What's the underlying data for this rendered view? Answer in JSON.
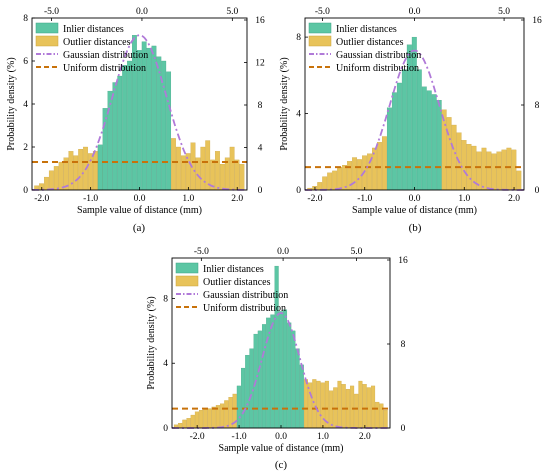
{
  "figure": {
    "ylabel": "Probability density (%)",
    "xlabel": "Sample value of distance (mm)",
    "legend": {
      "inlier": "Inlier distances",
      "outlier": "Outlier distances",
      "gaussian": "Gaussian distribution",
      "uniform": "Uniform distribution"
    },
    "colors": {
      "inlier": "#5cc6a4",
      "outlier": "#e8c35a",
      "gaussian": "#b07ad8",
      "uniform": "#c8720a"
    }
  },
  "chart_data": [
    {
      "type": "bar",
      "panel_label": "(a)",
      "title": "",
      "xlabel": "Sample value of distance (mm)",
      "ylabel": "Probability density (%)",
      "xlim": [
        -2.2,
        2.2
      ],
      "ylim": [
        0,
        8
      ],
      "xticks": [
        "-2.0",
        "-1.0",
        "0.0",
        "1.0",
        "2.0"
      ],
      "xtick_values": [
        -2,
        -1,
        0,
        1,
        2
      ],
      "yticks": [
        "0",
        "2",
        "4",
        "6",
        "8"
      ],
      "top_ticks": [
        "-5.0",
        "0.0",
        "5.0"
      ],
      "top_tick_values": [
        -1.8,
        0.05,
        1.9
      ],
      "right_ticks": [
        "0",
        "4",
        "8",
        "12",
        "16"
      ],
      "bin_width": 0.1,
      "inlier_range": [
        -0.8,
        0.6
      ],
      "outlier": {
        "x": [
          -2.1,
          -2.0,
          -1.9,
          -1.8,
          -1.7,
          -1.6,
          -1.5,
          -1.4,
          -1.3,
          -1.2,
          -1.1,
          -1.0,
          -0.9,
          -0.8,
          -0.7,
          -0.6,
          -0.5,
          -0.4,
          -0.3,
          -0.2,
          -0.1,
          0.0,
          0.1,
          0.2,
          0.3,
          0.4,
          0.5,
          0.6,
          0.7,
          0.8,
          0.9,
          1.0,
          1.1,
          1.2,
          1.3,
          1.4,
          1.5,
          1.6,
          1.7,
          1.8,
          1.9,
          2.0,
          2.1
        ],
        "values": [
          0.2,
          0.3,
          0.6,
          0.9,
          1.1,
          1.3,
          1.5,
          1.8,
          1.6,
          1.9,
          2.0,
          1.7,
          1.8,
          2.0,
          0,
          0,
          0,
          0,
          0,
          0,
          0,
          0,
          0,
          0,
          0,
          0,
          0,
          0,
          2.4,
          2.0,
          1.6,
          1.7,
          2.2,
          1.5,
          2.0,
          2.3,
          1.4,
          1.8,
          1.2,
          1.5,
          2.0,
          1.4,
          1.2
        ]
      },
      "inlier": {
        "x": [
          -0.8,
          -0.7,
          -0.6,
          -0.5,
          -0.4,
          -0.3,
          -0.2,
          -0.1,
          0.0,
          0.1,
          0.2,
          0.3,
          0.4,
          0.5,
          0.6
        ],
        "values": [
          2.1,
          3.8,
          4.6,
          5.0,
          5.3,
          5.8,
          6.0,
          7.2,
          6.5,
          6.9,
          6.6,
          6.7,
          6.2,
          6.0,
          5.5
        ]
      },
      "gaussian": {
        "mean": 0.0,
        "sd": 0.55,
        "peak": 7.2
      },
      "uniform": {
        "value": 1.3
      }
    },
    {
      "type": "bar",
      "panel_label": "(b)",
      "title": "",
      "xlabel": "Sample value of distance (mm)",
      "ylabel": "Probability density (%)",
      "xlim": [
        -2.2,
        2.2
      ],
      "ylim": [
        0,
        9
      ],
      "xticks": [
        "-2.0",
        "-1.0",
        "0.0",
        "1.0",
        "2.0"
      ],
      "xtick_values": [
        -2,
        -1,
        0,
        1,
        2
      ],
      "yticks": [
        "0",
        "4",
        "8"
      ],
      "top_ticks": [
        "-5.0",
        "0.0",
        "5.0"
      ],
      "top_tick_values": [
        -1.85,
        0.0,
        1.8
      ],
      "right_ticks": [
        "0",
        "8",
        "16"
      ],
      "bin_width": 0.1,
      "inlier_range": [
        -0.5,
        0.5
      ],
      "outlier": {
        "x": [
          -2.1,
          -2.0,
          -1.9,
          -1.8,
          -1.7,
          -1.6,
          -1.5,
          -1.4,
          -1.3,
          -1.2,
          -1.1,
          -1.0,
          -0.9,
          -0.8,
          -0.7,
          -0.6,
          -0.5,
          -0.4,
          -0.3,
          -0.2,
          -0.1,
          0.0,
          0.1,
          0.2,
          0.3,
          0.4,
          0.5,
          0.6,
          0.7,
          0.8,
          0.9,
          1.0,
          1.1,
          1.2,
          1.3,
          1.4,
          1.5,
          1.6,
          1.7,
          1.8,
          1.9,
          2.0,
          2.1
        ],
        "values": [
          0.1,
          0.2,
          0.4,
          0.7,
          0.9,
          1.0,
          1.2,
          1.3,
          1.5,
          1.7,
          1.6,
          1.8,
          1.9,
          2.2,
          2.5,
          2.8,
          0,
          0,
          0,
          0,
          0,
          0,
          0,
          0,
          0,
          0,
          0,
          4.2,
          3.8,
          3.4,
          3.0,
          2.6,
          2.4,
          2.3,
          2.0,
          2.2,
          2.0,
          1.9,
          2.0,
          2.1,
          2.2,
          2.1,
          1.0
        ]
      },
      "inlier": {
        "x": [
          -0.5,
          -0.4,
          -0.3,
          -0.2,
          -0.1,
          0.0,
          0.1,
          0.2,
          0.3,
          0.4,
          0.5
        ],
        "values": [
          4.3,
          5.1,
          5.6,
          6.3,
          7.6,
          8.0,
          6.3,
          5.4,
          5.2,
          5.0,
          4.7
        ]
      },
      "gaussian": {
        "mean": 0.0,
        "sd": 0.5,
        "peak": 7.3
      },
      "uniform": {
        "value": 1.2
      }
    },
    {
      "type": "bar",
      "panel_label": "(c)",
      "title": "",
      "xlabel": "Sample value of distance (mm)",
      "ylabel": "Probability density (%)",
      "xlim": [
        -2.6,
        2.6
      ],
      "ylim": [
        0,
        10.5
      ],
      "xticks": [
        "-2.0",
        "-1.0",
        "0.0",
        "1.0",
        "2.0"
      ],
      "xtick_values": [
        -2,
        -1,
        0,
        1,
        2
      ],
      "yticks": [
        "0",
        "4",
        "8"
      ],
      "top_ticks": [
        "-5.0",
        "0.0",
        "5.0"
      ],
      "top_tick_values": [
        -1.9,
        0.05,
        1.8
      ],
      "right_ticks": [
        "0",
        "8",
        "16"
      ],
      "bin_width": 0.1,
      "inlier_range": [
        -1.0,
        0.5
      ],
      "outlier": {
        "x": [
          -2.5,
          -2.4,
          -2.3,
          -2.2,
          -2.1,
          -2.0,
          -1.9,
          -1.8,
          -1.7,
          -1.6,
          -1.5,
          -1.4,
          -1.3,
          -1.2,
          -1.1,
          -1.0,
          -0.9,
          -0.8,
          -0.7,
          -0.6,
          -0.5,
          -0.4,
          -0.3,
          -0.2,
          -0.1,
          0.0,
          0.1,
          0.2,
          0.3,
          0.4,
          0.5,
          0.6,
          0.7,
          0.8,
          0.9,
          1.0,
          1.1,
          1.2,
          1.3,
          1.4,
          1.5,
          1.6,
          1.7,
          1.8,
          1.9,
          2.0,
          2.1,
          2.2,
          2.3,
          2.4,
          2.5
        ],
        "values": [
          0.2,
          0.3,
          0.5,
          0.6,
          0.8,
          1.0,
          1.1,
          1.2,
          1.2,
          1.3,
          1.4,
          1.5,
          1.7,
          1.9,
          2.1,
          0,
          0,
          0,
          0,
          0,
          0,
          0,
          0,
          0,
          0,
          0,
          0,
          0,
          0,
          0,
          0,
          3.0,
          2.8,
          3.0,
          2.9,
          2.8,
          2.9,
          2.3,
          2.5,
          2.9,
          2.7,
          2.4,
          2.6,
          2.1,
          2.9,
          2.7,
          2.5,
          2.6,
          1.6,
          1.5,
          1.1
        ]
      },
      "inlier": {
        "x": [
          -1.0,
          -0.9,
          -0.8,
          -0.7,
          -0.6,
          -0.5,
          -0.4,
          -0.3,
          -0.2,
          -0.1,
          0.0,
          0.1,
          0.2,
          0.3,
          0.4,
          0.5
        ],
        "values": [
          2.6,
          3.7,
          4.5,
          4.9,
          5.8,
          6.0,
          6.4,
          6.8,
          7.0,
          10.0,
          7.2,
          7.3,
          6.5,
          6.0,
          4.9,
          3.9
        ]
      },
      "gaussian": {
        "mean": 0.0,
        "sd": 0.45,
        "peak": 7.1
      },
      "uniform": {
        "value": 1.2
      }
    }
  ]
}
